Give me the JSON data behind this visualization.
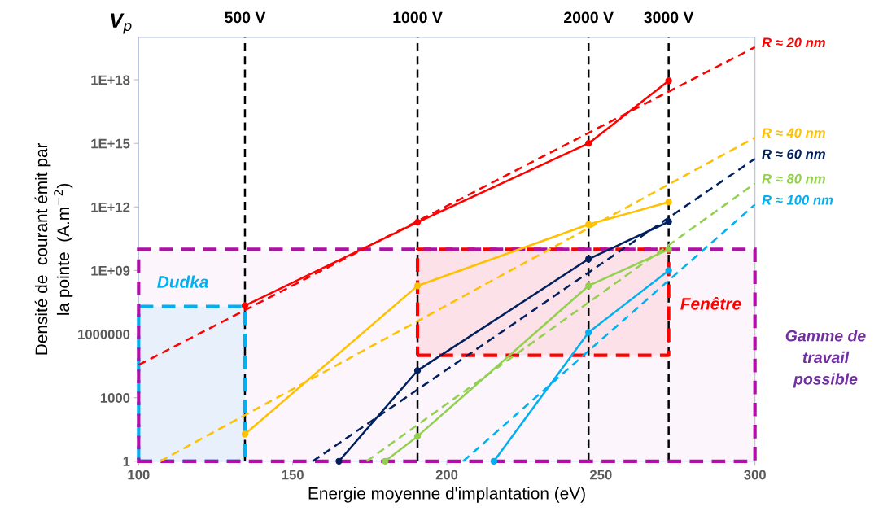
{
  "chart_data": {
    "type": "line",
    "xlabel": "Energie moyenne d'implantation (eV)",
    "ylabel": "Densité de  courant émit par\nla pointe  (A.m$^{−2}$)",
    "log": "y",
    "xlim": [
      100,
      300
    ],
    "xticks": [
      100,
      150,
      200,
      250,
      300
    ],
    "ylim": [
      1,
      1e+20
    ],
    "yticks": [
      1,
      1000,
      1000000,
      {
        "value": 1000000000.0,
        "label": "1E+09"
      },
      {
        "value": 1000000000000.0,
        "label": "1E+12"
      },
      {
        "value": 1000000000000000.0,
        "label": "1E+15"
      },
      {
        "value": 1e+18,
        "label": "1E+18"
      }
    ],
    "grid": false,
    "series": [
      {
        "type": "area",
        "color": "#00b0f0",
        "line_style": "dashed",
        "x": [
          100,
          134.5,
          134.5,
          100,
          100
        ],
        "values": [
          1,
          1,
          20000000.0,
          20000000.0,
          1
        ]
      },
      {
        "type": "area",
        "color": "#ff0000",
        "line_style": "dashed",
        "x": [
          190.5,
          272,
          272,
          190.5,
          190.5
        ],
        "values": [
          100000.0,
          100000.0,
          10000000000.0,
          10000000000.0,
          100000.0
        ]
      },
      {
        "color": "#ff0000",
        "line_style": "solid",
        "marker": "circle",
        "x": [
          134.5,
          190.5,
          246,
          272
        ],
        "values": [
          22000000.0,
          190000000000.0,
          1000000000000000.0,
          9e+17
        ]
      },
      {
        "color": "#ffc000",
        "line_style": "solid",
        "marker": "circle",
        "x": [
          134.5,
          190.5,
          246,
          272
        ],
        "values": [
          19,
          190000000.0,
          150000000000.0,
          1700000000000.0
        ]
      },
      {
        "color": "#002060",
        "line_style": "solid",
        "marker": "circle",
        "x": [
          165,
          190.5,
          246,
          272
        ],
        "values": [
          1,
          19000.0,
          3500000000.0,
          200000000000.0
        ]
      },
      {
        "color": "#92d050",
        "line_style": "solid",
        "marker": "circle",
        "x": [
          180,
          190.5,
          246,
          272
        ],
        "values": [
          1,
          15,
          190000000.0,
          10000000000.0
        ]
      },
      {
        "color": "#00b0f0",
        "line_style": "solid",
        "marker": "circle",
        "x": [
          215.3,
          246,
          272
        ],
        "values": [
          1,
          1200000.0,
          1000000000.0
        ]
      },
      {
        "name": "R ≈ 20 nm",
        "color": "#ff0000",
        "line_style": "dashed",
        "x": [
          100,
          300
        ],
        "values": [
          35000.0,
          3.5e+19
        ]
      },
      {
        "name": "R ≈ 40 nm",
        "color": "#ffc000",
        "line_style": "dashed",
        "x": [
          107,
          300
        ],
        "values": [
          1,
          1900000000000000.0
        ]
      },
      {
        "name": "R ≈ 60 nm",
        "color": "#002060",
        "line_style": "dashed",
        "x": [
          156.5,
          300
        ],
        "values": [
          1,
          190000000000000.0
        ]
      },
      {
        "name": "R ≈ 80 nm",
        "color": "#92d050",
        "line_style": "dashed",
        "x": [
          174,
          300
        ],
        "values": [
          1,
          13000000000000.0
        ]
      },
      {
        "name": "R ≈ 100 nm",
        "color": "#00b0f0",
        "line_style": "dashed",
        "x": [
          205.3,
          300
        ],
        "values": [
          1,
          1300000000000.0
        ]
      }
    ],
    "bands": [
      {
        "axis": "y",
        "from": 1,
        "to": 10000000000.0,
        "label": "Gamme de\ntravail\npossible",
        "color": "#b010a8"
      }
    ],
    "ref_lines": [
      {
        "axis": "x",
        "value": 134.5,
        "label": "500 V",
        "color": "#000000",
        "line_style": "dashed"
      },
      {
        "axis": "x",
        "value": 190.5,
        "label": "1000 V",
        "color": "#000000",
        "line_style": "dashed"
      },
      {
        "axis": "x",
        "value": 246,
        "label": "2000 V",
        "color": "#000000",
        "line_style": "dashed"
      },
      {
        "axis": "x",
        "value": 272,
        "label": "3000 V",
        "color": "#000000",
        "line_style": "dashed"
      }
    ],
    "annotations": [
      "V$_{p}$",
      "Dudka",
      "Fenêtre"
    ]
  }
}
